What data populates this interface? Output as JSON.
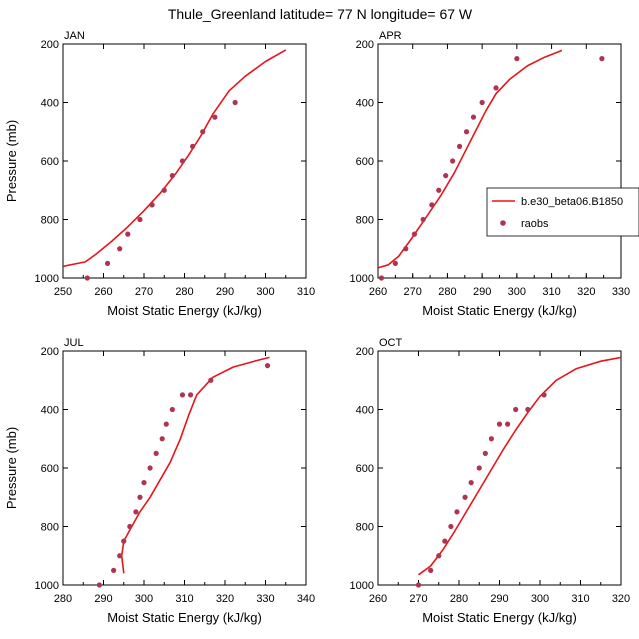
{
  "title": "Thule_Greenland  latitude= 77 N longitude= 67 W",
  "legend": {
    "items": [
      {
        "label": "b.e30_beta06.B1850",
        "type": "line",
        "color": "#e8141a"
      },
      {
        "label": "raobs",
        "type": "marker",
        "color": "#b0334f"
      }
    ]
  },
  "colors": {
    "model": "#e8141a",
    "obs": "#b0334f"
  },
  "chart_data": [
    {
      "type": "line",
      "panel_label": "JAN",
      "xlabel": "Moist Static Energy (kJ/kg)",
      "ylabel": "Pressure (mb)",
      "xlim": [
        250,
        310
      ],
      "ylim": [
        1000,
        200
      ],
      "y_reversed": true,
      "xticks": [
        250,
        260,
        270,
        280,
        290,
        300,
        310
      ],
      "yticks": [
        200,
        400,
        600,
        800,
        1000
      ],
      "series": [
        {
          "name": "b.e30_beta06.B1850",
          "type": "line",
          "x": [
            250,
            255.5,
            258,
            262,
            266,
            270,
            274,
            278,
            281,
            284,
            287,
            291,
            295,
            300,
            305
          ],
          "y": [
            960,
            945,
            920,
            875,
            825,
            770,
            710,
            640,
            580,
            515,
            440,
            360,
            310,
            260,
            220
          ]
        },
        {
          "name": "raobs",
          "type": "scatter",
          "x": [
            256,
            261,
            264,
            266,
            269,
            272,
            275,
            277,
            279.5,
            282,
            284.5,
            287.5,
            292.5
          ],
          "y": [
            1000,
            950,
            900,
            850,
            800,
            750,
            700,
            650,
            600,
            550,
            500,
            450,
            400
          ]
        }
      ]
    },
    {
      "type": "line",
      "panel_label": "APR",
      "xlabel": "Moist Static Energy (kJ/kg)",
      "ylabel": "",
      "xlim": [
        260,
        330
      ],
      "ylim": [
        1000,
        200
      ],
      "y_reversed": true,
      "xticks": [
        260,
        270,
        280,
        290,
        300,
        310,
        320,
        330
      ],
      "yticks": [
        200,
        400,
        600,
        800,
        1000
      ],
      "series": [
        {
          "name": "b.e30_beta06.B1850",
          "type": "line",
          "x": [
            260,
            263,
            266,
            270,
            274,
            278,
            282,
            285,
            288,
            291,
            294,
            298,
            303,
            308,
            313
          ],
          "y": [
            965,
            955,
            925,
            860,
            790,
            720,
            640,
            570,
            500,
            430,
            370,
            320,
            275,
            245,
            222
          ]
        },
        {
          "name": "raobs",
          "type": "scatter",
          "x": [
            261,
            265,
            268,
            270.5,
            273,
            275.5,
            277.5,
            279.5,
            281.5,
            283.5,
            285.5,
            287.5,
            290,
            294,
            300,
            324.5
          ],
          "y": [
            1000,
            950,
            900,
            850,
            800,
            750,
            700,
            650,
            600,
            550,
            500,
            450,
            400,
            350,
            250,
            250
          ]
        }
      ]
    },
    {
      "type": "line",
      "panel_label": "JUL",
      "xlabel": "Moist Static Energy (kJ/kg)",
      "ylabel": "Pressure (mb)",
      "xlim": [
        280,
        340
      ],
      "ylim": [
        1000,
        200
      ],
      "y_reversed": true,
      "xticks": [
        280,
        290,
        300,
        310,
        320,
        330,
        340
      ],
      "yticks": [
        200,
        400,
        600,
        800,
        1000
      ],
      "series": [
        {
          "name": "b.e30_beta06.B1850",
          "type": "line",
          "x": [
            295,
            294.5,
            295,
            297,
            299,
            301.5,
            304,
            306.5,
            309,
            311,
            313,
            317,
            322,
            328,
            331
          ],
          "y": [
            960,
            900,
            850,
            800,
            750,
            700,
            640,
            580,
            500,
            420,
            350,
            290,
            255,
            232,
            222
          ]
        },
        {
          "name": "raobs",
          "type": "scatter",
          "x": [
            289,
            292.5,
            294,
            295,
            296.5,
            298,
            299,
            300,
            301.5,
            303,
            304.5,
            305.5,
            307,
            309.5,
            311.5,
            316.5,
            330.5
          ],
          "y": [
            1000,
            950,
            900,
            850,
            800,
            750,
            700,
            650,
            600,
            550,
            500,
            450,
            400,
            350,
            350,
            300,
            250
          ]
        }
      ]
    },
    {
      "type": "line",
      "panel_label": "OCT",
      "xlabel": "Moist Static Energy (kJ/kg)",
      "ylabel": "",
      "xlim": [
        260,
        320
      ],
      "ylim": [
        1000,
        200
      ],
      "y_reversed": true,
      "xticks": [
        260,
        270,
        280,
        290,
        300,
        310,
        320
      ],
      "yticks": [
        200,
        400,
        600,
        800,
        1000
      ],
      "series": [
        {
          "name": "b.e30_beta06.B1850",
          "type": "line",
          "x": [
            270,
            273,
            276,
            279,
            282,
            285,
            288,
            291,
            294,
            297,
            300,
            304,
            309,
            315,
            320
          ],
          "y": [
            965,
            935,
            880,
            815,
            745,
            675,
            605,
            535,
            470,
            410,
            355,
            300,
            260,
            235,
            222
          ]
        },
        {
          "name": "raobs",
          "type": "scatter",
          "x": [
            270,
            273,
            275,
            276.5,
            278,
            279.5,
            281.5,
            283,
            285,
            286.5,
            288,
            290,
            292,
            294,
            297,
            301
          ],
          "y": [
            1000,
            950,
            900,
            850,
            800,
            750,
            700,
            650,
            600,
            550,
            500,
            450,
            450,
            400,
            400,
            350
          ]
        }
      ]
    }
  ]
}
